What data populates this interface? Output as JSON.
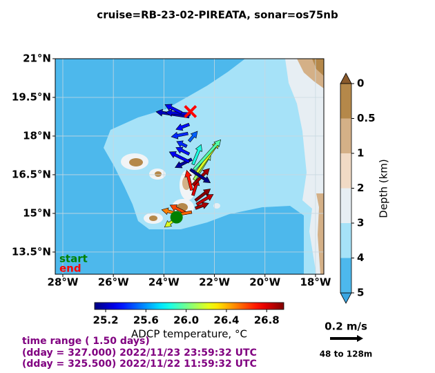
{
  "title": "cruise=RB-23-02-PIREATA,   sonar=os75nb",
  "map": {
    "xlim": [
      -28.3,
      -17.67
    ],
    "ylim": [
      12.64,
      21
    ],
    "grid": true,
    "xticks": [
      {
        "value": -28,
        "label": "28°W"
      },
      {
        "value": -26,
        "label": "26°W"
      },
      {
        "value": -24,
        "label": "24°W"
      },
      {
        "value": -22,
        "label": "22°W"
      },
      {
        "value": -20,
        "label": "20°W"
      },
      {
        "value": -18,
        "label": "18°W"
      }
    ],
    "yticks": [
      {
        "value": 21,
        "label": "21°N"
      },
      {
        "value": 19.5,
        "label": "19.5°N"
      },
      {
        "value": 18,
        "label": "18°N"
      },
      {
        "value": 16.5,
        "label": "16.5°N"
      },
      {
        "value": 15,
        "label": "15°N"
      },
      {
        "value": 13.5,
        "label": "13.5°N"
      }
    ]
  },
  "track": {
    "start": {
      "label": "start",
      "lon": -23.5,
      "lat": 14.85,
      "color": "#008000"
    },
    "end": {
      "label": "end",
      "lon": -22.95,
      "lat": 18.95,
      "color": "#ff0000"
    }
  },
  "vectors": {
    "scale": {
      "value": 0.2,
      "label": "0.2 m/s"
    },
    "depth_range": "48 to 128m",
    "arrows": [
      {
        "lon": -23.45,
        "lat": 14.85,
        "u": -0.08,
        "v": -0.06,
        "temperature": 26.2
      },
      {
        "lon": -23.3,
        "lat": 14.95,
        "u": -0.12,
        "v": 0.03,
        "temperature": 26.5
      },
      {
        "lon": -23.1,
        "lat": 15.0,
        "u": -0.1,
        "v": 0.05,
        "temperature": 26.6
      },
      {
        "lon": -22.9,
        "lat": 15.05,
        "u": -0.12,
        "v": -0.02,
        "temperature": 26.55
      },
      {
        "lon": -22.75,
        "lat": 15.2,
        "u": 0.08,
        "v": 0.03,
        "temperature": 26.9
      },
      {
        "lon": -22.7,
        "lat": 15.35,
        "u": 0.1,
        "v": 0.06,
        "temperature": 26.85
      },
      {
        "lon": -22.75,
        "lat": 15.5,
        "u": 0.09,
        "v": 0.07,
        "temperature": 26.95
      },
      {
        "lon": -22.85,
        "lat": 15.7,
        "u": 0.03,
        "v": 0.1,
        "temperature": 26.8
      },
      {
        "lon": -22.9,
        "lat": 15.9,
        "u": -0.03,
        "v": 0.12,
        "temperature": 26.7
      },
      {
        "lon": -22.85,
        "lat": 16.1,
        "u": 0.1,
        "v": 0.1,
        "temperature": 26.9
      },
      {
        "lon": -22.8,
        "lat": 16.3,
        "u": 0.1,
        "v": 0.16,
        "temperature": 26.1
      },
      {
        "lon": -22.75,
        "lat": 16.5,
        "u": 0.14,
        "v": 0.2,
        "temperature": 26.2
      },
      {
        "lon": -22.8,
        "lat": 16.7,
        "u": 0.16,
        "v": 0.18,
        "temperature": 25.95
      },
      {
        "lon": -22.85,
        "lat": 16.9,
        "u": 0.05,
        "v": 0.12,
        "temperature": 25.85
      },
      {
        "lon": -22.9,
        "lat": 17.1,
        "u": -0.1,
        "v": -0.05,
        "temperature": 25.15
      },
      {
        "lon": -22.95,
        "lat": 16.7,
        "u": 0.12,
        "v": -0.08,
        "temperature": 25.1
      },
      {
        "lon": -23.0,
        "lat": 17.0,
        "u": -0.12,
        "v": 0.06,
        "temperature": 25.3
      },
      {
        "lon": -23.0,
        "lat": 17.3,
        "u": -0.08,
        "v": 0.04,
        "temperature": 25.35
      },
      {
        "lon": -23.1,
        "lat": 17.6,
        "u": -0.06,
        "v": 0.03,
        "temperature": 25.4
      },
      {
        "lon": -23.0,
        "lat": 17.8,
        "u": 0.05,
        "v": 0.06,
        "temperature": 25.5
      },
      {
        "lon": -23.05,
        "lat": 18.1,
        "u": -0.1,
        "v": -0.02,
        "temperature": 25.4
      },
      {
        "lon": -23.0,
        "lat": 18.45,
        "u": -0.08,
        "v": -0.03,
        "temperature": 25.35
      },
      {
        "lon": -23.0,
        "lat": 18.75,
        "u": -0.2,
        "v": 0.03,
        "temperature": 25.2
      },
      {
        "lon": -22.95,
        "lat": 18.85,
        "u": -0.15,
        "v": 0.01,
        "temperature": 25.25
      },
      {
        "lon": -23.3,
        "lat": 18.9,
        "u": -0.1,
        "v": 0.05,
        "temperature": 25.3
      }
    ]
  },
  "temperature_colorbar": {
    "label": "ADCP temperature, °C",
    "lim": [
      25.09,
      26.97
    ],
    "ticks": [
      25.2,
      25.6,
      {
        "value": 26,
        "label": "26.0"
      },
      26.4,
      26.8
    ]
  },
  "depth_colorbar": {
    "label": "Depth (km)",
    "ticks": [
      0,
      0.5,
      1,
      2,
      3,
      4,
      5
    ],
    "colors": [
      "#b5884a",
      "#d4b087",
      "#f1dac5",
      "#e7eef3",
      "#a6e2f8",
      "#4db8ec"
    ],
    "over_color": "#8a5a2c",
    "under_color": "#3aa6e2"
  },
  "time_range": [
    "time range ( 1.50 days)",
    "(dday = 327.000) 2022/11/23 23:59:32 UTC",
    "(dday = 325.500) 2022/11/22 11:59:32 UTC"
  ]
}
